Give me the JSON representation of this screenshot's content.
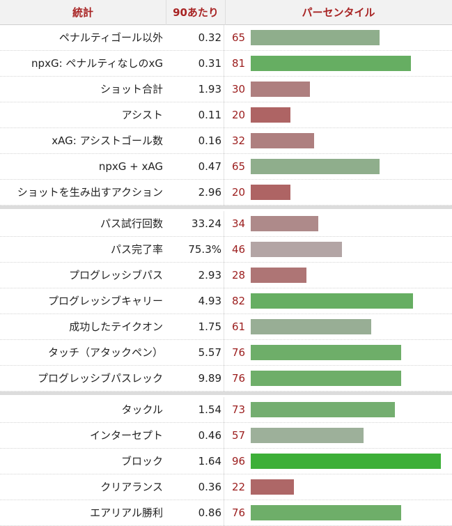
{
  "header": {
    "stat": "統計",
    "per90": "90あたり",
    "percentile": "パーセンタイル"
  },
  "groups": [
    {
      "rows": [
        {
          "stat": "ペナルティゴール以外",
          "per90": "0.32",
          "pct": 65,
          "color": "#8fae8c"
        },
        {
          "stat": "npxG: ペナルティなしのxG",
          "per90": "0.31",
          "pct": 81,
          "color": "#66ae62"
        },
        {
          "stat": "ショット合計",
          "per90": "1.93",
          "pct": 30,
          "color": "#ae7f7f"
        },
        {
          "stat": "アシスト",
          "per90": "0.11",
          "pct": 20,
          "color": "#ae6464"
        },
        {
          "stat": "xAG: アシストゴール数",
          "per90": "0.16",
          "pct": 32,
          "color": "#ae7f7f"
        },
        {
          "stat": "npxG + xAG",
          "per90": "0.47",
          "pct": 65,
          "color": "#8fae8c"
        },
        {
          "stat": "ショットを生み出すアクション",
          "per90": "2.96",
          "pct": 20,
          "color": "#ae6464"
        }
      ]
    },
    {
      "rows": [
        {
          "stat": "パス試行回数",
          "per90": "33.24",
          "pct": 34,
          "color": "#ae8a8a"
        },
        {
          "stat": "パス完了率",
          "per90": "75.3%",
          "pct": 46,
          "color": "#b3a5a5"
        },
        {
          "stat": "プログレッシブパス",
          "per90": "2.93",
          "pct": 28,
          "color": "#ae7575"
        },
        {
          "stat": "プログレッシブキャリー",
          "per90": "4.93",
          "pct": 82,
          "color": "#66ae62"
        },
        {
          "stat": "成功したテイクオン",
          "per90": "1.75",
          "pct": 61,
          "color": "#98ae95"
        },
        {
          "stat": "タッチ（アタックペン）",
          "per90": "5.57",
          "pct": 76,
          "color": "#6eae69"
        },
        {
          "stat": "プログレッシブパスレック",
          "per90": "9.89",
          "pct": 76,
          "color": "#6eae69"
        }
      ]
    },
    {
      "rows": [
        {
          "stat": "タックル",
          "per90": "1.54",
          "pct": 73,
          "color": "#74ae70"
        },
        {
          "stat": "インターセプト",
          "per90": "0.46",
          "pct": 57,
          "color": "#9db09a"
        },
        {
          "stat": "ブロック",
          "per90": "1.64",
          "pct": 96,
          "color": "#3daf38"
        },
        {
          "stat": "クリアランス",
          "per90": "0.36",
          "pct": 22,
          "color": "#ae6767"
        },
        {
          "stat": "エアリアル勝利",
          "per90": "0.86",
          "pct": 76,
          "color": "#6eae69"
        }
      ]
    }
  ]
}
